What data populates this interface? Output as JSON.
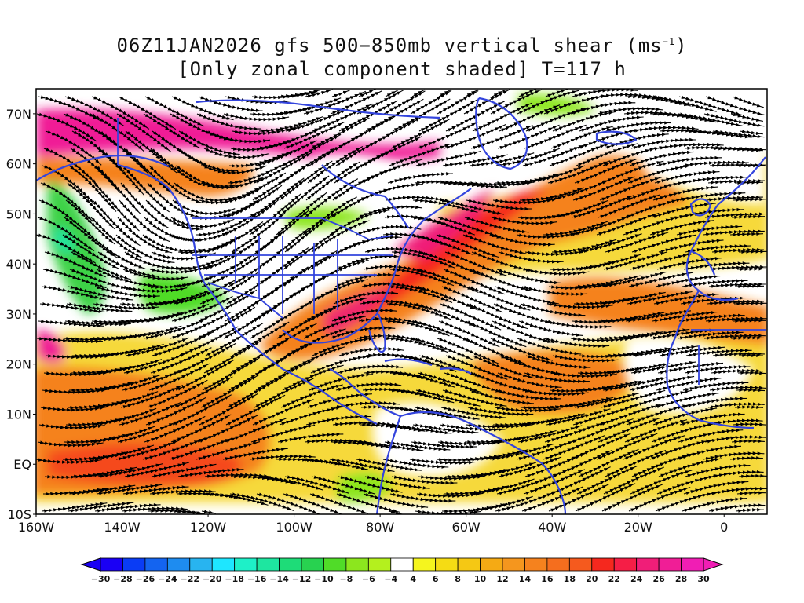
{
  "title": {
    "line1_prefix": "06Z11JAN2026 gfs 500−850mb vertical shear (ms",
    "line1_sup": "−1",
    "line1_suffix": ")",
    "line2": "[Only zonal component shaded] T=117 h"
  },
  "map": {
    "projection": "lat-lon",
    "lon_range": [
      -160,
      10
    ],
    "lat_range": [
      -10,
      75
    ],
    "shaded_quantity": "zonal component of 500-850mb vertical shear",
    "overlay": "shear streamlines",
    "coastline_color": "#3344dd",
    "lat_ticks": [
      {
        "value": 70,
        "label": "70N"
      },
      {
        "value": 60,
        "label": "60N"
      },
      {
        "value": 50,
        "label": "50N"
      },
      {
        "value": 40,
        "label": "40N"
      },
      {
        "value": 30,
        "label": "30N"
      },
      {
        "value": 20,
        "label": "20N"
      },
      {
        "value": 10,
        "label": "10N"
      },
      {
        "value": 0,
        "label": "EQ"
      },
      {
        "value": -10,
        "label": "10S"
      }
    ],
    "lon_ticks": [
      {
        "value": -160,
        "label": "160W"
      },
      {
        "value": -140,
        "label": "140W"
      },
      {
        "value": -120,
        "label": "120W"
      },
      {
        "value": -100,
        "label": "100W"
      },
      {
        "value": -80,
        "label": "80W"
      },
      {
        "value": -60,
        "label": "60W"
      },
      {
        "value": -40,
        "label": "40W"
      },
      {
        "value": -20,
        "label": "20W"
      },
      {
        "value": 0,
        "label": "0"
      }
    ]
  },
  "colorbar": {
    "labels": [
      "-30",
      "-28",
      "-26",
      "-24",
      "-22",
      "-20",
      "-18",
      "-16",
      "-14",
      "-12",
      "-10",
      "-8",
      "-6",
      "-4",
      "4",
      "6",
      "8",
      "10",
      "12",
      "14",
      "16",
      "18",
      "20",
      "22",
      "24",
      "26",
      "28",
      "30"
    ],
    "colors": [
      "#1a00f5",
      "#0a3cf5",
      "#1464f0",
      "#1e8cf0",
      "#28b4f0",
      "#1ee6ff",
      "#1ef0c8",
      "#1ee6a0",
      "#1edc78",
      "#28d250",
      "#50dc28",
      "#8ce61e",
      "#b4f01e",
      "#ffffff",
      "#f5f51e",
      "#f5dc14",
      "#f5c814",
      "#f5aa14",
      "#f5961e",
      "#f5821e",
      "#f56e1e",
      "#f55a1e",
      "#f5281e",
      "#f51e46",
      "#f01e78",
      "#f01e96",
      "#f01eb4"
    ]
  }
}
